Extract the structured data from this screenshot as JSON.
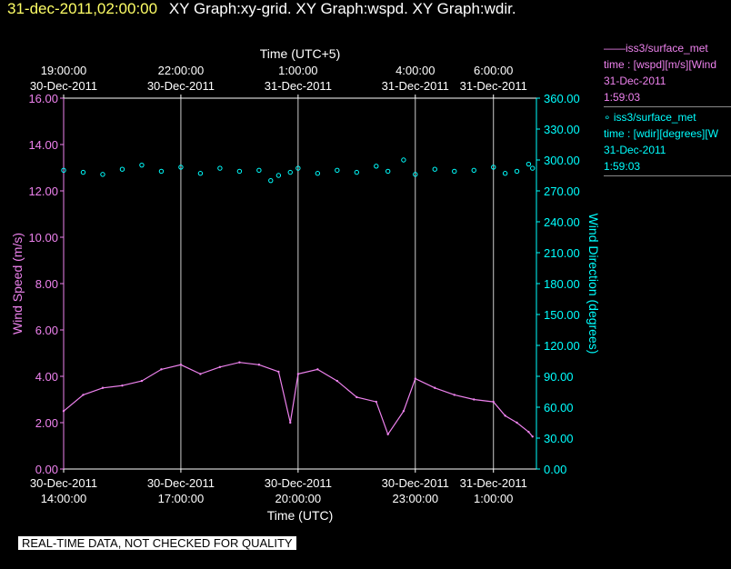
{
  "header": {
    "timestamp": "31-dec-2011,02:00:00",
    "title": "XY Graph:xy-grid.  XY Graph:wspd.  XY Graph:wdir."
  },
  "legend": {
    "series1": {
      "name": "——iss3/surface_met",
      "line": "time : [wspd][m/s][Wind",
      "date": "31-Dec-2011",
      "time": "1:59:03"
    },
    "series2": {
      "name": "∘ iss3/surface_met",
      "line": "time : [wdir][degrees][W",
      "date": "31-Dec-2011",
      "time": "1:59:03"
    }
  },
  "warning": "REAL-TIME DATA, NOT CHECKED FOR QUALITY",
  "colors": {
    "wspd": "#ee82ee",
    "wdir": "#00ffff",
    "grid": "#cccccc",
    "background": "#000000"
  },
  "chart_data": {
    "type": "line",
    "top_axis": {
      "title": "Time (UTC+5)",
      "ticks": [
        {
          "time": "19:00:00",
          "date": "30-Dec-2011",
          "utc_hours": 14
        },
        {
          "time": "22:00:00",
          "date": "30-Dec-2011",
          "utc_hours": 17
        },
        {
          "time": "1:00:00",
          "date": "31-Dec-2011",
          "utc_hours": 20
        },
        {
          "time": "4:00:00",
          "date": "31-Dec-2011",
          "utc_hours": 23
        },
        {
          "time": "6:00:00",
          "date": "31-Dec-2011",
          "utc_hours": 25
        }
      ]
    },
    "x_axis": {
      "title": "Time (UTC)",
      "range_utc_hours": [
        14,
        26.1
      ],
      "ticks": [
        {
          "date": "30-Dec-2011",
          "time": "14:00:00",
          "utc_hours": 14
        },
        {
          "date": "30-Dec-2011",
          "time": "17:00:00",
          "utc_hours": 17
        },
        {
          "date": "30-Dec-2011",
          "time": "20:00:00",
          "utc_hours": 20
        },
        {
          "date": "30-Dec-2011",
          "time": "23:00:00",
          "utc_hours": 23
        },
        {
          "date": "31-Dec-2011",
          "time": "1:00:00",
          "utc_hours": 25
        }
      ]
    },
    "y_left": {
      "title": "Wind Speed (m/s)",
      "range": [
        0,
        16
      ],
      "ticks": [
        "0.00",
        "2.00",
        "4.00",
        "6.00",
        "8.00",
        "10.00",
        "12.00",
        "14.00",
        "16.00"
      ]
    },
    "y_right": {
      "title": "Wind Direction (degrees)",
      "range": [
        0,
        360
      ],
      "ticks": [
        "0.00",
        "30.00",
        "60.00",
        "90.00",
        "120.00",
        "150.00",
        "180.00",
        "210.00",
        "240.00",
        "270.00",
        "300.00",
        "330.00",
        "360.00"
      ]
    },
    "grid": "vertical lines at x ticks",
    "series": [
      {
        "name": "wspd",
        "style": "line",
        "color": "#ee82ee",
        "axis": "left",
        "x": [
          14.0,
          14.5,
          15.0,
          15.5,
          16.0,
          16.5,
          17.0,
          17.5,
          18.0,
          18.5,
          19.0,
          19.5,
          19.8,
          20.0,
          20.5,
          21.0,
          21.5,
          22.0,
          22.3,
          22.7,
          23.0,
          23.5,
          24.0,
          24.5,
          25.0,
          25.3,
          25.6,
          25.9,
          26.0
        ],
        "y": [
          2.5,
          3.2,
          3.5,
          3.6,
          3.8,
          4.3,
          4.5,
          4.1,
          4.4,
          4.6,
          4.5,
          4.2,
          2.0,
          4.1,
          4.3,
          3.8,
          3.1,
          2.9,
          1.5,
          2.5,
          3.9,
          3.5,
          3.2,
          3.0,
          2.9,
          2.3,
          2.0,
          1.6,
          1.4
        ]
      },
      {
        "name": "wdir",
        "style": "markers",
        "color": "#00ffff",
        "axis": "right",
        "x": [
          14.0,
          14.5,
          15.0,
          15.5,
          16.0,
          16.5,
          17.0,
          17.5,
          18.0,
          18.5,
          19.0,
          19.3,
          19.5,
          19.8,
          20.0,
          20.5,
          21.0,
          21.5,
          22.0,
          22.3,
          22.7,
          23.0,
          23.5,
          24.0,
          24.5,
          25.0,
          25.3,
          25.6,
          25.9,
          26.0
        ],
        "y": [
          290,
          288,
          286,
          291,
          295,
          289,
          293,
          287,
          292,
          289,
          290,
          280,
          285,
          288,
          292,
          287,
          290,
          288,
          294,
          289,
          300,
          286,
          291,
          289,
          290,
          293,
          287,
          289,
          296,
          292
        ]
      }
    ]
  }
}
